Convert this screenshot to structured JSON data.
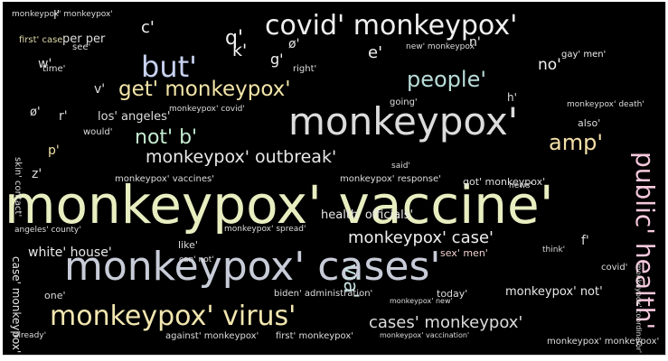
{
  "words": [
    {
      "text": "monkeypox' vaccine'",
      "size": 58,
      "color": "#e8eec0"
    },
    {
      "text": "monkeypox' cases'",
      "size": 44,
      "color": "#c8ccd8"
    },
    {
      "text": "monkeypox'",
      "size": 42,
      "color": "#dcdcdc"
    },
    {
      "text": "covid' monkeypox'",
      "size": 30,
      "color": "#f0f0f0"
    },
    {
      "text": "monkeypox' virus'",
      "size": 30,
      "color": "#f2e6b0"
    },
    {
      "text": "public' health'",
      "size": 28,
      "color": "#f4c8dc"
    },
    {
      "text": "but'",
      "size": 32,
      "color": "#c8d2f0"
    },
    {
      "text": "get' monkeypox'",
      "size": 23,
      "color": "#f2e4a8"
    },
    {
      "text": "people'",
      "size": 24,
      "color": "#b8dcd8"
    },
    {
      "text": "not' b'",
      "size": 22,
      "color": "#c4ecd0"
    },
    {
      "text": "amp'",
      "size": 24,
      "color": "#f4e0a8"
    },
    {
      "text": "monkeypox' outbreak'",
      "size": 19,
      "color": "#e8e8e8"
    },
    {
      "text": "monkeypox' case'",
      "size": 18,
      "color": "#eeeeee"
    },
    {
      "text": "cases' monkeypox'",
      "size": 18,
      "color": "#dcdcdc"
    },
    {
      "text": "via'",
      "size": 22,
      "color": "#c8e0e0"
    },
    {
      "text": "q'",
      "size": 22,
      "color": "#f0f0f0"
    },
    {
      "text": "k'",
      "size": 19,
      "color": "#f4f4f4"
    },
    {
      "text": "c'",
      "size": 18,
      "color": "#f0f0f0"
    },
    {
      "text": "g'",
      "size": 16,
      "color": "#f4f4f4"
    },
    {
      "text": "e'",
      "size": 18,
      "color": "#f0f0f0"
    },
    {
      "text": "n'",
      "size": 14,
      "color": "#ececec"
    },
    {
      "text": "no'",
      "size": 17,
      "color": "#f0f0f0"
    },
    {
      "text": "ø'",
      "size": 14,
      "color": "#e0e0e0"
    },
    {
      "text": "ø'",
      "size": 13,
      "color": "#e0e0e0"
    },
    {
      "text": "r'",
      "size": 14,
      "color": "#dddddd"
    },
    {
      "text": "p'",
      "size": 14,
      "color": "#f0e0a8"
    },
    {
      "text": "z'",
      "size": 14,
      "color": "#dddddd"
    },
    {
      "text": "v'",
      "size": 14,
      "color": "#dddddd"
    },
    {
      "text": "h'",
      "size": 12,
      "color": "#dddddd"
    },
    {
      "text": "f'",
      "size": 14,
      "color": "#dddddd"
    },
    {
      "text": "w'",
      "size": 14,
      "color": "#dddddd"
    },
    {
      "text": "l'",
      "size": 13,
      "color": "#dddddd"
    },
    {
      "text": "per per",
      "size": 13,
      "color": "#dddddd"
    },
    {
      "text": "first' case'",
      "size": 10,
      "color": "#e0d8a8"
    },
    {
      "text": "see'",
      "size": 10,
      "color": "#dddddd"
    },
    {
      "text": "time'",
      "size": 10,
      "color": "#dddddd"
    },
    {
      "text": "new' monkeypox'",
      "size": 9,
      "color": "#dddddd"
    },
    {
      "text": "gay' men'",
      "size": 10,
      "color": "#eeeeee"
    },
    {
      "text": "right'",
      "size": 10,
      "color": "#dddddd"
    },
    {
      "text": "monkeypox' covid'",
      "size": 9,
      "color": "#dddddd"
    },
    {
      "text": "los' angeles'",
      "size": 13,
      "color": "#dddddd"
    },
    {
      "text": "would'",
      "size": 10,
      "color": "#dddddd"
    },
    {
      "text": "going'",
      "size": 10,
      "color": "#dddddd"
    },
    {
      "text": "monkeypox' death'",
      "size": 9,
      "color": "#dddddd"
    },
    {
      "text": "also'",
      "size": 11,
      "color": "#dddddd"
    },
    {
      "text": "said'",
      "size": 9,
      "color": "#dddddd"
    },
    {
      "text": "monkeypox' vaccines'",
      "size": 10,
      "color": "#dddddd"
    },
    {
      "text": "monkeypox' response'",
      "size": 10,
      "color": "#dddddd"
    },
    {
      "text": "got' monkeypox'",
      "size": 11,
      "color": "#dddddd"
    },
    {
      "text": "news'",
      "size": 9,
      "color": "#dddddd"
    },
    {
      "text": "angeles' county'",
      "size": 9,
      "color": "#dddddd"
    },
    {
      "text": "health' officials'",
      "size": 13,
      "color": "#e8e8e8"
    },
    {
      "text": "like'",
      "size": 11,
      "color": "#dddddd"
    },
    {
      "text": "white' house'",
      "size": 14,
      "color": "#e8e8e8"
    },
    {
      "text": "sex' men'",
      "size": 11,
      "color": "#f0d0d0"
    },
    {
      "text": "think'",
      "size": 9,
      "color": "#dddddd"
    },
    {
      "text": "covid'",
      "size": 10,
      "color": "#dddddd"
    },
    {
      "text": "one'",
      "size": 11,
      "color": "#dddddd"
    },
    {
      "text": "biden' administration'",
      "size": 10,
      "color": "#dddddd"
    },
    {
      "text": "monkeypox' new'",
      "size": 8,
      "color": "#dddddd"
    },
    {
      "text": "today'",
      "size": 11,
      "color": "#dddddd"
    },
    {
      "text": "monkeypox' not'",
      "size": 13,
      "color": "#e8e8e8"
    },
    {
      "text": "monkeypox' coordinator'",
      "size": 8,
      "color": "#dddddd"
    },
    {
      "text": "already'",
      "size": 9,
      "color": "#dddddd"
    },
    {
      "text": "against' monkeypox'",
      "size": 10,
      "color": "#dddddd"
    },
    {
      "text": "first' monkeypox'",
      "size": 10,
      "color": "#dddddd"
    },
    {
      "text": "monkeypox' monkeypox'",
      "size": 10,
      "color": "#dddddd"
    },
    {
      "text": "skin' contact'",
      "size": 10,
      "color": "#dddddd"
    },
    {
      "text": "case' monkeypox'",
      "size": 12,
      "color": "#e8e8e8"
    },
    {
      "text": "can' not'",
      "size": 9,
      "color": "#dddddd"
    },
    {
      "text": "monkeypox' spread'",
      "size": 9,
      "color": "#dddddd"
    },
    {
      "text": "monkeypox' vaccination'",
      "size": 8,
      "color": "#dddddd"
    },
    {
      "text": "monkeypox' monkeypox'",
      "size": 9,
      "color": "#dddddd"
    }
  ]
}
